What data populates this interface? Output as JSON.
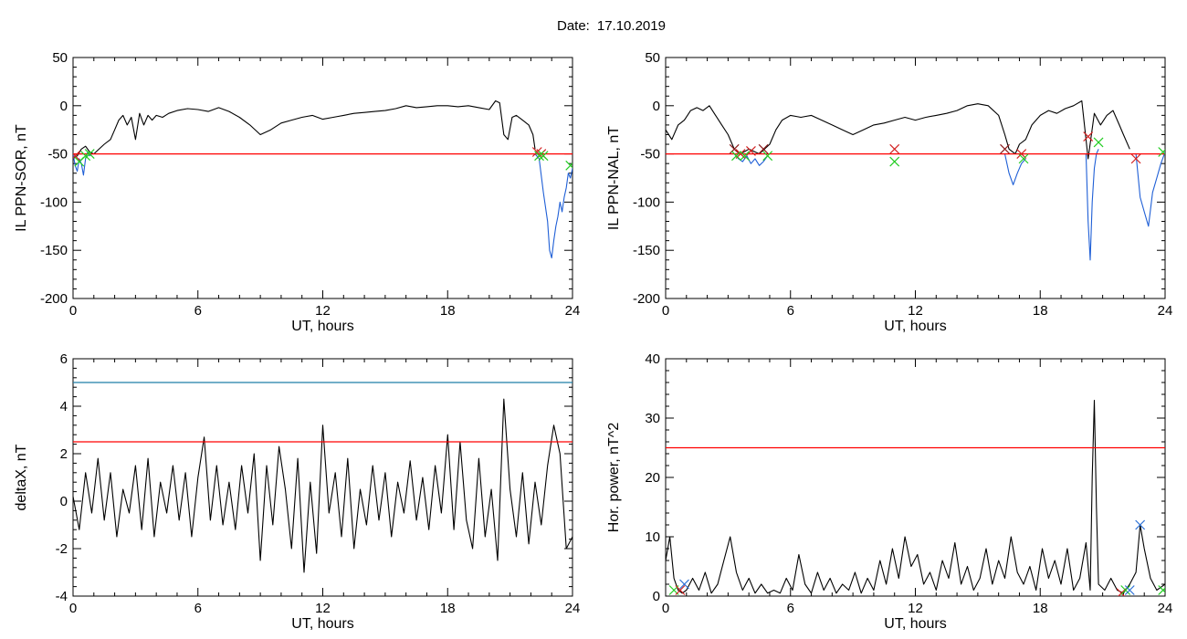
{
  "title": {
    "prefix": "Date:",
    "date": "17.10.2019"
  },
  "colors": {
    "axes": "#000000",
    "data": "#000000",
    "threshold_red": "#ff0000",
    "threshold_blue": "#1e7fa8",
    "substorm_blue": "#1f5fd6",
    "marker_red": "#d22020",
    "marker_green": "#22cc22",
    "marker_blue": "#2a6fd6",
    "marker_dark_red": "#8b1a1a"
  },
  "chart_data": [
    {
      "id": "il-ppn-sor",
      "type": "line",
      "xlabel": "UT, hours",
      "ylabel": "IL PPN-SOR, nT",
      "xlim": [
        0,
        24
      ],
      "ylim": [
        -200,
        50
      ],
      "xticks": [
        0,
        6,
        12,
        18,
        24
      ],
      "yticks": [
        -200,
        -150,
        -100,
        -50,
        0,
        50
      ],
      "threshold": [
        {
          "y": -50,
          "color": "red"
        }
      ],
      "series": [
        {
          "color": "black",
          "x": [
            0,
            0.2,
            0.4,
            0.6,
            0.8,
            1.0,
            1.2,
            1.5,
            1.8,
            2.0,
            2.2,
            2.4,
            2.6,
            2.8,
            3.0,
            3.2,
            3.4,
            3.6,
            3.8,
            4.0,
            4.3,
            4.6,
            5.0,
            5.5,
            6.0,
            6.5,
            7.0,
            7.5,
            8.0,
            8.5,
            9.0,
            9.5,
            10.0,
            10.5,
            11.0,
            11.5,
            12.0,
            12.5,
            13.0,
            13.5,
            14.0,
            14.5,
            15.0,
            15.5,
            16.0,
            16.5,
            17.0,
            17.5,
            18.0,
            18.5,
            19.0,
            19.5,
            20.0,
            20.3,
            20.5,
            20.7,
            20.9,
            21.1,
            21.3,
            21.6,
            21.9,
            22.1,
            22.2
          ],
          "y": [
            -55,
            -52,
            -45,
            -42,
            -48,
            -50,
            -46,
            -40,
            -35,
            -25,
            -15,
            -10,
            -20,
            -12,
            -35,
            -8,
            -20,
            -10,
            -15,
            -10,
            -12,
            -8,
            -5,
            -3,
            -4,
            -6,
            -2,
            -6,
            -12,
            -20,
            -30,
            -25,
            -18,
            -15,
            -12,
            -10,
            -14,
            -12,
            -10,
            -8,
            -7,
            -6,
            -5,
            -3,
            0,
            -2,
            -1,
            0,
            0,
            -1,
            0,
            -2,
            -4,
            5,
            3,
            -30,
            -35,
            -12,
            -10,
            -15,
            -20,
            -30,
            -45
          ]
        },
        {
          "color": "blue",
          "x": [
            0,
            0.1,
            0.2,
            0.3,
            0.4,
            0.5,
            0.6,
            0.7,
            0.8,
            0.9
          ],
          "y": [
            -50,
            -62,
            -68,
            -55,
            -60,
            -72,
            -55,
            -48,
            -52,
            -50
          ]
        },
        {
          "color": "blue",
          "x": [
            22.2,
            22.4,
            22.6,
            22.8,
            22.9,
            23.0,
            23.1,
            23.2,
            23.3,
            23.4,
            23.5,
            23.6,
            23.7,
            23.8,
            23.9,
            24.0
          ],
          "y": [
            -50,
            -55,
            -90,
            -120,
            -150,
            -158,
            -140,
            -125,
            -115,
            -100,
            -110,
            -95,
            -85,
            -70,
            -75,
            -65
          ]
        }
      ],
      "markers": [
        {
          "x": 0.1,
          "y": -52,
          "color": "red"
        },
        {
          "x": 0.3,
          "y": -58,
          "color": "green"
        },
        {
          "x": 0.6,
          "y": -52,
          "color": "green"
        },
        {
          "x": 0.8,
          "y": -50,
          "color": "green"
        },
        {
          "x": 22.3,
          "y": -48,
          "color": "red"
        },
        {
          "x": 22.5,
          "y": -50,
          "color": "red"
        },
        {
          "x": 22.4,
          "y": -52,
          "color": "green"
        },
        {
          "x": 22.6,
          "y": -52,
          "color": "green"
        },
        {
          "x": 23.9,
          "y": -62,
          "color": "green"
        }
      ]
    },
    {
      "id": "il-ppn-nal",
      "type": "line",
      "xlabel": "UT, hours",
      "ylabel": "IL PPN-NAL, nT",
      "xlim": [
        0,
        24
      ],
      "ylim": [
        -200,
        50
      ],
      "xticks": [
        0,
        6,
        12,
        18,
        24
      ],
      "yticks": [
        -200,
        -150,
        -100,
        -50,
        0,
        50
      ],
      "threshold": [
        {
          "y": -50,
          "color": "red"
        }
      ],
      "series": [
        {
          "color": "black",
          "x": [
            0,
            0.3,
            0.6,
            0.9,
            1.2,
            1.5,
            1.8,
            2.1,
            2.4,
            2.7,
            3.0,
            3.3,
            3.6,
            4.0,
            4.5,
            5.0,
            5.3,
            5.6,
            6.0,
            6.5,
            7.0,
            7.5,
            8.0,
            8.5,
            9.0,
            9.5,
            10.0,
            10.5,
            11.0,
            11.5,
            12.0,
            12.5,
            13.0,
            13.5,
            14.0,
            14.5,
            15.0,
            15.5,
            16.0,
            16.3,
            16.5,
            16.8,
            17.0,
            17.3,
            17.6,
            18.0,
            18.4,
            18.8,
            19.2,
            19.6,
            20.0,
            20.3,
            20.6,
            20.9,
            21.2,
            21.5,
            21.8,
            22.0,
            22.3
          ],
          "y": [
            -25,
            -35,
            -20,
            -15,
            -5,
            -2,
            -5,
            0,
            -10,
            -20,
            -30,
            -45,
            -50,
            -45,
            -50,
            -40,
            -25,
            -15,
            -10,
            -12,
            -10,
            -15,
            -20,
            -25,
            -30,
            -25,
            -20,
            -18,
            -15,
            -12,
            -15,
            -12,
            -10,
            -8,
            -5,
            0,
            2,
            0,
            -10,
            -30,
            -45,
            -50,
            -40,
            -35,
            -20,
            -10,
            -5,
            -8,
            -3,
            0,
            5,
            -55,
            -8,
            -20,
            -10,
            -5,
            -20,
            -30,
            -45
          ]
        },
        {
          "color": "blue",
          "x": [
            3.3,
            3.5,
            3.7,
            3.9,
            4.1,
            4.3,
            4.5,
            4.7,
            4.9
          ],
          "y": [
            -50,
            -55,
            -58,
            -52,
            -60,
            -55,
            -62,
            -58,
            -52
          ]
        },
        {
          "color": "blue",
          "x": [
            16.3,
            16.5,
            16.7,
            16.9,
            17.1,
            17.3
          ],
          "y": [
            -50,
            -70,
            -82,
            -70,
            -60,
            -55
          ]
        },
        {
          "color": "blue",
          "x": [
            20.2,
            20.3,
            20.4,
            20.5,
            20.6,
            20.7,
            20.8
          ],
          "y": [
            -50,
            -120,
            -160,
            -100,
            -65,
            -50,
            -45
          ]
        },
        {
          "color": "blue",
          "x": [
            22.6,
            22.8,
            23.0,
            23.2,
            23.4,
            23.6,
            23.8,
            24.0
          ],
          "y": [
            -50,
            -95,
            -110,
            -125,
            -90,
            -75,
            -60,
            -48
          ]
        }
      ],
      "markers": [
        {
          "x": 3.3,
          "y": -45,
          "color": "dark-red"
        },
        {
          "x": 3.6,
          "y": -50,
          "color": "red"
        },
        {
          "x": 4.1,
          "y": -47,
          "color": "red"
        },
        {
          "x": 4.7,
          "y": -45,
          "color": "dark-red"
        },
        {
          "x": 3.4,
          "y": -52,
          "color": "green"
        },
        {
          "x": 3.8,
          "y": -52,
          "color": "green"
        },
        {
          "x": 4.9,
          "y": -52,
          "color": "green"
        },
        {
          "x": 11.0,
          "y": -45,
          "color": "red"
        },
        {
          "x": 11.0,
          "y": -58,
          "color": "green"
        },
        {
          "x": 16.3,
          "y": -45,
          "color": "dark-red"
        },
        {
          "x": 17.1,
          "y": -50,
          "color": "red"
        },
        {
          "x": 17.2,
          "y": -55,
          "color": "green"
        },
        {
          "x": 20.3,
          "y": -32,
          "color": "red"
        },
        {
          "x": 20.8,
          "y": -38,
          "color": "green"
        },
        {
          "x": 22.6,
          "y": -55,
          "color": "red"
        },
        {
          "x": 23.9,
          "y": -48,
          "color": "green"
        }
      ]
    },
    {
      "id": "deltax",
      "type": "line",
      "xlabel": "UT, hours",
      "ylabel": "deltaX, nT",
      "xlim": [
        0,
        24
      ],
      "ylim": [
        -4,
        6
      ],
      "xticks": [
        0,
        6,
        12,
        18,
        24
      ],
      "yticks": [
        -4,
        -2,
        0,
        2,
        4,
        6
      ],
      "threshold": [
        {
          "y": 5,
          "color": "blue"
        },
        {
          "y": 2.5,
          "color": "red"
        }
      ],
      "series": [
        {
          "color": "black",
          "x": [
            0,
            0.3,
            0.6,
            0.9,
            1.2,
            1.5,
            1.8,
            2.1,
            2.4,
            2.7,
            3.0,
            3.3,
            3.6,
            3.9,
            4.2,
            4.5,
            4.8,
            5.1,
            5.4,
            5.7,
            6.0,
            6.3,
            6.6,
            6.9,
            7.2,
            7.5,
            7.8,
            8.1,
            8.4,
            8.7,
            9.0,
            9.3,
            9.6,
            9.9,
            10.2,
            10.5,
            10.8,
            11.1,
            11.4,
            11.7,
            12.0,
            12.3,
            12.6,
            12.9,
            13.2,
            13.5,
            13.8,
            14.1,
            14.4,
            14.7,
            15.0,
            15.3,
            15.6,
            15.9,
            16.2,
            16.5,
            16.8,
            17.1,
            17.4,
            17.7,
            18.0,
            18.3,
            18.6,
            18.9,
            19.2,
            19.5,
            19.8,
            20.1,
            20.4,
            20.7,
            21.0,
            21.3,
            21.6,
            21.9,
            22.2,
            22.5,
            22.8,
            23.1,
            23.4,
            23.7,
            24.0
          ],
          "y": [
            0.2,
            -1.2,
            1.2,
            -0.5,
            1.8,
            -0.8,
            1.2,
            -1.5,
            0.5,
            -0.5,
            1.5,
            -1.2,
            1.8,
            -1.5,
            0.8,
            -0.5,
            1.5,
            -0.8,
            1.2,
            -1.5,
            1.0,
            2.7,
            -0.8,
            1.5,
            -1.0,
            0.8,
            -1.2,
            1.5,
            -0.5,
            2.0,
            -2.5,
            1.5,
            -1.0,
            2.3,
            0.5,
            -2.0,
            1.8,
            -3.0,
            0.8,
            -2.2,
            3.2,
            -0.5,
            1.2,
            -1.5,
            1.8,
            -2.0,
            0.5,
            -1.0,
            1.5,
            -0.8,
            1.2,
            -1.5,
            0.8,
            -0.5,
            1.7,
            -0.8,
            1.0,
            -1.2,
            1.5,
            -0.5,
            2.8,
            -1.2,
            2.5,
            -0.8,
            -2.0,
            1.8,
            -1.5,
            0.5,
            -2.5,
            4.3,
            0.5,
            -1.5,
            1.2,
            -1.8,
            0.8,
            -1.0,
            1.5,
            3.2,
            2.0,
            -2.0,
            -1.5
          ]
        }
      ],
      "markers": []
    },
    {
      "id": "hor-power",
      "type": "line",
      "xlabel": "UT, hours",
      "ylabel": "Hor. power, nT^2",
      "xlim": [
        0,
        24
      ],
      "ylim": [
        0,
        40
      ],
      "xticks": [
        0,
        6,
        12,
        18,
        24
      ],
      "yticks": [
        0,
        10,
        20,
        30,
        40
      ],
      "threshold": [
        {
          "y": 25,
          "color": "red"
        }
      ],
      "series": [
        {
          "color": "black",
          "x": [
            0,
            0.2,
            0.4,
            0.6,
            0.8,
            1.0,
            1.3,
            1.6,
            1.9,
            2.2,
            2.5,
            2.8,
            3.1,
            3.4,
            3.7,
            4.0,
            4.3,
            4.6,
            4.9,
            5.2,
            5.5,
            5.8,
            6.1,
            6.4,
            6.7,
            7.0,
            7.3,
            7.6,
            7.9,
            8.2,
            8.5,
            8.8,
            9.1,
            9.4,
            9.7,
            10.0,
            10.3,
            10.6,
            10.9,
            11.2,
            11.5,
            11.8,
            12.1,
            12.4,
            12.7,
            13.0,
            13.3,
            13.6,
            13.9,
            14.2,
            14.5,
            14.8,
            15.1,
            15.4,
            15.7,
            16.0,
            16.3,
            16.6,
            16.9,
            17.2,
            17.5,
            17.8,
            18.1,
            18.4,
            18.7,
            19.0,
            19.3,
            19.6,
            19.9,
            20.2,
            20.4,
            20.5,
            20.6,
            20.7,
            20.8,
            21.1,
            21.4,
            21.7,
            22.0,
            22.3,
            22.6,
            22.8,
            23.0,
            23.3,
            23.6,
            24.0
          ],
          "y": [
            6,
            10,
            3,
            1,
            0.5,
            1,
            3,
            1,
            4,
            0.5,
            2,
            6,
            10,
            4,
            1,
            3,
            0.5,
            2,
            0.5,
            1,
            0.5,
            3,
            1,
            7,
            2,
            0.5,
            4,
            1,
            3,
            0.5,
            2,
            1,
            4,
            0.5,
            3,
            1,
            6,
            2,
            8,
            3,
            10,
            5,
            7,
            2,
            4,
            1,
            6,
            3,
            9,
            2,
            5,
            1,
            3,
            8,
            2,
            6,
            3,
            10,
            4,
            2,
            5,
            1,
            8,
            3,
            6,
            2,
            8,
            1,
            3,
            9,
            1,
            20,
            33,
            15,
            2,
            1,
            3,
            1,
            0.5,
            2,
            4,
            12,
            8,
            3,
            1,
            2
          ]
        }
      ],
      "markers": [
        {
          "x": 0.4,
          "y": 1,
          "color": "green"
        },
        {
          "x": 0.7,
          "y": 1,
          "color": "red"
        },
        {
          "x": 0.9,
          "y": 2,
          "color": "blue"
        },
        {
          "x": 21.9,
          "y": 0.5,
          "color": "red"
        },
        {
          "x": 22.1,
          "y": 1,
          "color": "green"
        },
        {
          "x": 22.3,
          "y": 1,
          "color": "blue"
        },
        {
          "x": 22.8,
          "y": 12,
          "color": "blue"
        },
        {
          "x": 23.9,
          "y": 1,
          "color": "green"
        }
      ]
    }
  ]
}
